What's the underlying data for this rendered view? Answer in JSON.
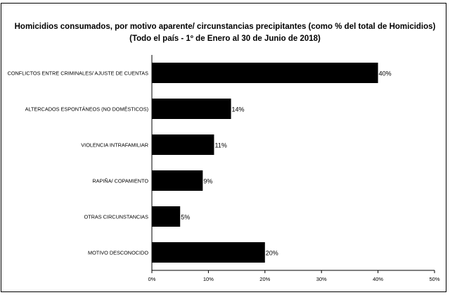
{
  "chart_data": {
    "type": "bar",
    "orientation": "horizontal",
    "title": "Homicidios consumados, por motivo aparente/ circunstancias precipitantes (como % del total de Homicidios)",
    "subtitle": "(Todo el país - 1º de Enero al 30 de Junio de 2018)",
    "categories": [
      "CONFLICTOS ENTRE CRIMINALES/ AJUSTE DE CUENTAS",
      "ALTERCADOS ESPONTÁNEOS (NO DOMÉSTICOS)",
      "VIOLENCIA INTRAFAMILIAR",
      "RAPIÑA/ COPAMIENTO",
      "OTRAS CIRCUNSTANCIAS",
      "MOTIVO DESCONOCIDO"
    ],
    "values": [
      40,
      14,
      11,
      9,
      5,
      20
    ],
    "data_labels": [
      "40%",
      "14%",
      "11%",
      "9%",
      "5%",
      "20%"
    ],
    "xlim": [
      0,
      50
    ],
    "x_ticks": [
      "0%",
      "10%",
      "20%",
      "30%",
      "40%",
      "50%"
    ],
    "bar_color": "#000000",
    "grid": false,
    "legend": "none"
  }
}
